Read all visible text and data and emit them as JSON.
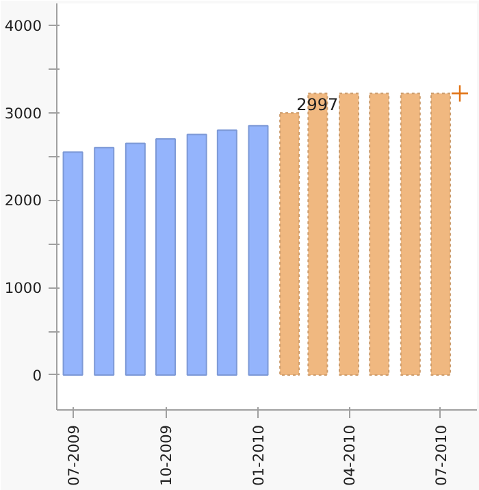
{
  "chart_data": {
    "type": "bar",
    "series": [
      {
        "color": "#94b4fc",
        "x": [
          "2009-07",
          "2009-08",
          "2009-09",
          "2009-10",
          "2009-11",
          "2009-12",
          "2010-01"
        ],
        "values": [
          2550,
          2600,
          2650,
          2700,
          2750,
          2800,
          2850
        ]
      },
      {
        "color": "#f0b880",
        "line_style": "dashed",
        "x": [
          "2010-02",
          "2010-03",
          "2010-04",
          "2010-05",
          "2010-06",
          "2010-07"
        ],
        "values": [
          2997,
          3220,
          3220,
          3220,
          3220,
          3220
        ]
      },
      {
        "type": "scatter",
        "marker": "cross",
        "color": "#e07010",
        "x": [
          "2010-07-20"
        ],
        "values": [
          3220
        ]
      }
    ],
    "annotations": [
      {
        "text": "2997",
        "x": "2010-02",
        "y": 2997
      }
    ],
    "xlim": [
      "2009-06-15",
      "2010-08-06"
    ],
    "xticks": [
      {
        "value": "2009-07",
        "label": "07-2009"
      },
      {
        "value": "2009-10",
        "label": "10-2009"
      },
      {
        "value": "2010-01",
        "label": "01-2010"
      },
      {
        "value": "2010-04",
        "label": "04-2010"
      },
      {
        "value": "2010-07",
        "label": "07-2010"
      }
    ],
    "ylim": [
      -400,
      4250
    ],
    "yticks": [
      0,
      {
        "value": 500,
        "label": null
      },
      1000,
      {
        "value": 1500,
        "label": null
      },
      2000,
      {
        "value": 2500,
        "label": null
      },
      3000,
      {
        "value": 3500,
        "label": null
      },
      4000
    ],
    "grid": false
  }
}
